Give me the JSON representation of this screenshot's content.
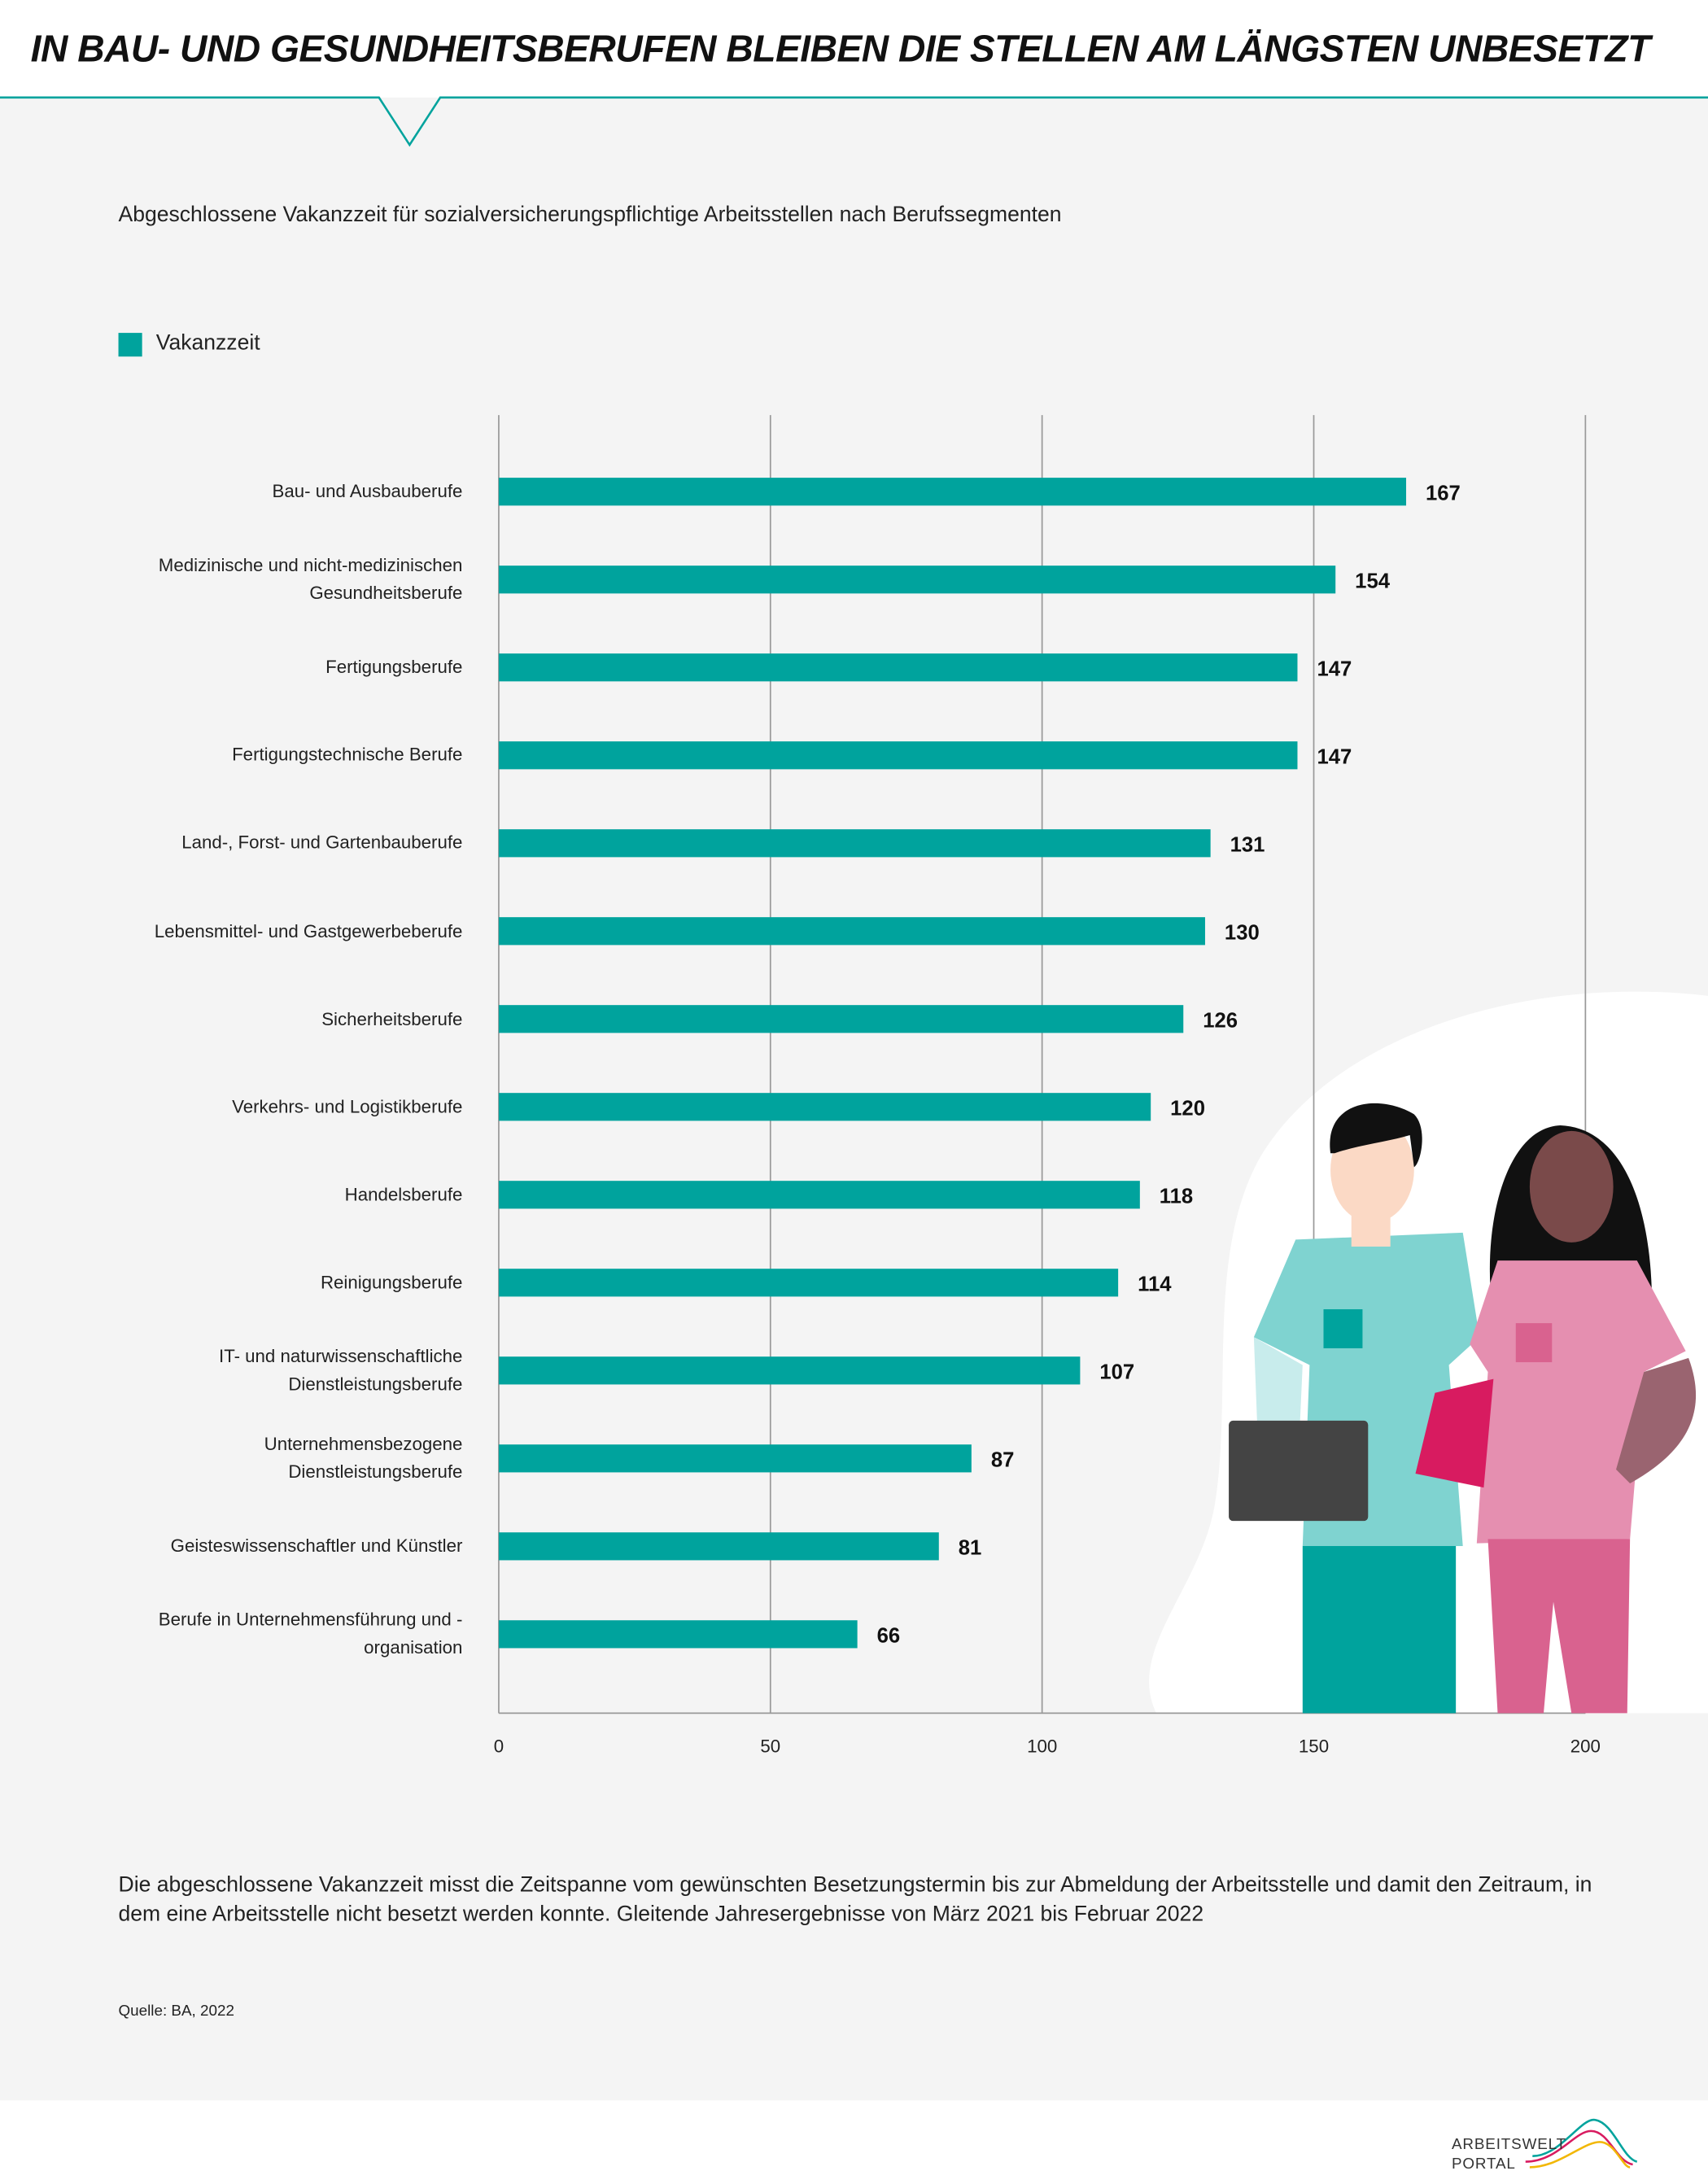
{
  "chart_data": {
    "type": "bar",
    "orientation": "horizontal",
    "title": "IN BAU- UND GESUNDHEITSBERUFEN BLEIBEN DIE STELLEN AM LÄNGSTEN UNBESETZT",
    "subtitle": "Abgeschlossene Vakanzzeit für sozialversicherungspflichtige Arbeitsstellen nach Berufssegmenten",
    "categories": [
      "Bau- und Ausbauberufe",
      "Medizinische und nicht-medizinischen Gesundheitsberufe",
      "Fertigungsberufe",
      "Fertigungstechnische Berufe",
      "Land-, Forst- und Gartenbauberufe",
      "Lebensmittel- und Gastgewerbeberufe",
      "Sicherheitsberufe",
      "Verkehrs- und Logistikberufe",
      "Handelsberufe",
      "Reinigungsberufe",
      "IT- und naturwissenschaftliche Dienstleistungsberufe",
      "Unternehmensbezogene Dienstleistungsberufe",
      "Geisteswissenschaftler und Künstler",
      "Berufe in Unternehmensführung und -organisation"
    ],
    "series": [
      {
        "name": "Vakanzzeit",
        "color": "#00a39d",
        "values": [
          167,
          154,
          147,
          147,
          131,
          130,
          126,
          120,
          118,
          114,
          107,
          87,
          81,
          66
        ]
      }
    ],
    "xlim": [
      0,
      200
    ],
    "xticks": [
      0,
      50,
      100,
      150,
      200
    ],
    "grid": true,
    "legend": "top-left",
    "note": "Die abgeschlossene Vakanzzeit misst die Zeitspanne vom gewünschten Besetzungstermin bis zur Abmeldung der Arbeitsstelle und damit den Zeitraum, in dem eine Arbeitsstelle nicht besetzt werden konnte. Gleitende Jahresergebnisse von März 2021 bis Februar 2022",
    "source": "Quelle: BA, 2022"
  },
  "footer": {
    "logo": [
      "ARBEITSWELT",
      "PORTAL"
    ]
  }
}
